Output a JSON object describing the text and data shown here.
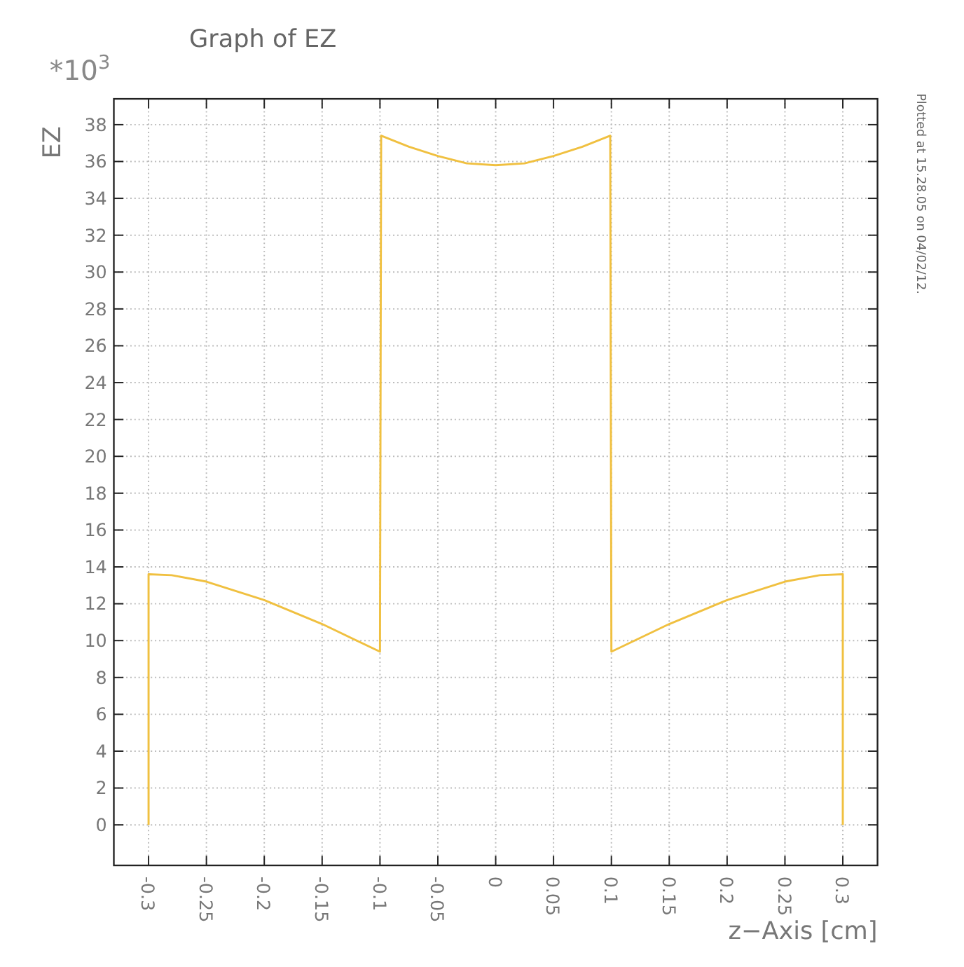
{
  "chart_data": {
    "type": "line",
    "title": "Graph of EZ",
    "xlabel": "z−Axis [cm]",
    "ylabel": "EZ",
    "annotations": [
      "*10$^{3}$",
      "Plotted at 15.28.05 on 04/02/12."
    ],
    "x": [
      -0.3,
      -0.3,
      -0.28,
      -0.25,
      -0.2,
      -0.15,
      -0.1,
      -0.099,
      -0.075,
      -0.05,
      -0.025,
      0,
      0.025,
      0.05,
      0.075,
      0.099,
      0.1,
      0.15,
      0.2,
      0.25,
      0.28,
      0.3,
      0.3
    ],
    "series": [
      {
        "color": "#f0c040",
        "values": [
          0,
          13.6,
          13.55,
          13.2,
          12.2,
          10.9,
          9.4,
          37.4,
          36.8,
          36.3,
          35.9,
          35.8,
          35.9,
          36.3,
          36.8,
          37.4,
          9.4,
          10.9,
          12.2,
          13.2,
          13.55,
          13.6,
          0
        ]
      }
    ],
    "xlim": [
      -0.33,
      0.33
    ],
    "ylim": [
      -2.2,
      39.4
    ],
    "xticks": [
      -0.3,
      -0.25,
      -0.2,
      -0.15,
      -0.1,
      -0.05,
      0,
      0.05,
      0.1,
      0.15,
      0.2,
      0.25,
      0.3
    ],
    "yticks": [
      0,
      2,
      4,
      6,
      8,
      10,
      12,
      14,
      16,
      18,
      20,
      22,
      24,
      26,
      28,
      30,
      32,
      34,
      36,
      38
    ],
    "grid": true,
    "marker": "none",
    "line_style": "solid"
  }
}
